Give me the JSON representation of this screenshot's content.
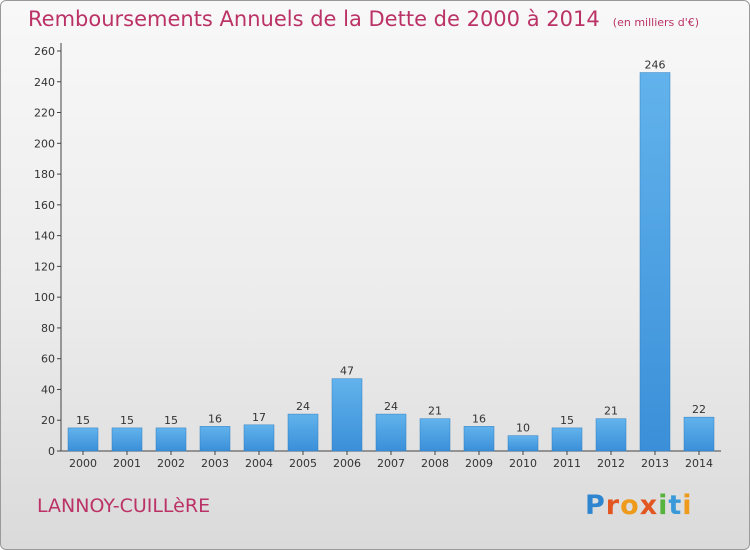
{
  "chart_data": {
    "type": "bar",
    "title": "Remboursements Annuels de la Dette de 2000 à 2014",
    "subtitle": "(en milliers d'€)",
    "categories": [
      "2000",
      "2001",
      "2002",
      "2003",
      "2004",
      "2005",
      "2006",
      "2007",
      "2008",
      "2009",
      "2010",
      "2011",
      "2012",
      "2013",
      "2014"
    ],
    "values": [
      15,
      15,
      15,
      16,
      17,
      24,
      47,
      24,
      21,
      16,
      10,
      15,
      21,
      246,
      22
    ],
    "ylim": [
      0,
      260
    ],
    "yticks": [
      0,
      20,
      40,
      60,
      80,
      100,
      120,
      140,
      160,
      180,
      200,
      220,
      240,
      260
    ],
    "grid": false,
    "bar_color": "#3a8fd8"
  },
  "footer": {
    "location": "LANNOY-CUILLèRE",
    "brand_letters": [
      "P",
      "r",
      "o",
      "x",
      "i",
      "t",
      "i"
    ]
  }
}
